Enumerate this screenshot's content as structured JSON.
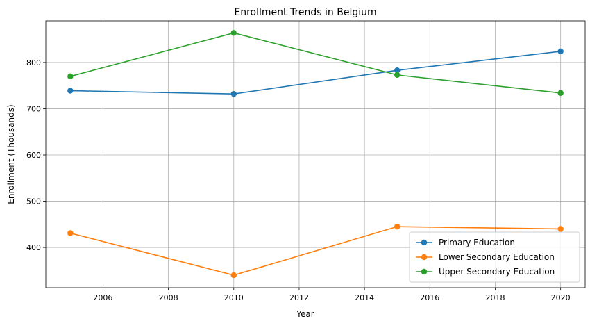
{
  "chart_data": {
    "type": "line",
    "title": "Enrollment Trends in Belgium",
    "xlabel": "Year",
    "ylabel": "Enrollment (Thousands)",
    "x": [
      2005,
      2010,
      2015,
      2020
    ],
    "xlim": [
      2004.25,
      2020.75
    ],
    "ylim": [
      313,
      890
    ],
    "xticks": [
      2006,
      2008,
      2010,
      2012,
      2014,
      2016,
      2018,
      2020
    ],
    "yticks": [
      400,
      500,
      600,
      700,
      800
    ],
    "grid": true,
    "legend_position": "lower-right",
    "series": [
      {
        "name": "Primary Education",
        "color": "#1f77b4",
        "values": [
          739,
          732,
          783,
          824
        ]
      },
      {
        "name": "Lower Secondary Education",
        "color": "#ff7f0e",
        "values": [
          431,
          340,
          445,
          440
        ]
      },
      {
        "name": "Upper Secondary Education",
        "color": "#2ca02c",
        "values": [
          770,
          864,
          773,
          734
        ]
      }
    ]
  }
}
